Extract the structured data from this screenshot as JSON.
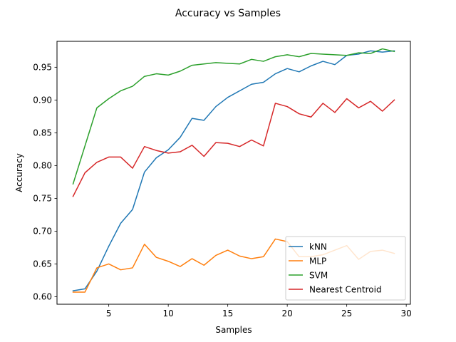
{
  "chart_data": {
    "type": "line",
    "title": "Accuracy vs Samples",
    "xlabel": "Samples",
    "ylabel": "Accuracy",
    "xlim": [
      0.65,
      30.35
    ],
    "ylim": [
      0.5885,
      0.9895
    ],
    "xticks": [
      5,
      10,
      15,
      20,
      25,
      30
    ],
    "yticks": [
      0.6,
      0.65,
      0.7,
      0.75,
      0.8,
      0.85,
      0.9,
      0.95
    ],
    "grid": false,
    "legend_position": "lower-right",
    "x": [
      2,
      3,
      4,
      5,
      6,
      7,
      8,
      9,
      10,
      11,
      12,
      13,
      14,
      15,
      16,
      17,
      18,
      19,
      20,
      21,
      22,
      23,
      24,
      25,
      26,
      27,
      28,
      29
    ],
    "series": [
      {
        "name": "kNN",
        "color": "#1f77b4",
        "values": [
          0.609,
          0.612,
          0.639,
          0.677,
          0.712,
          0.733,
          0.79,
          0.812,
          0.824,
          0.843,
          0.872,
          0.869,
          0.89,
          0.904,
          0.914,
          0.924,
          0.927,
          0.94,
          0.948,
          0.943,
          0.952,
          0.959,
          0.954,
          0.968,
          0.97,
          0.975,
          0.973,
          0.975
        ]
      },
      {
        "name": "MLP",
        "color": "#ff7f0e",
        "values": [
          0.607,
          0.607,
          0.644,
          0.65,
          0.641,
          0.644,
          0.68,
          0.66,
          0.654,
          0.646,
          0.658,
          0.648,
          0.663,
          0.671,
          0.662,
          0.658,
          0.661,
          0.688,
          0.684,
          0.661,
          0.661,
          0.664,
          0.671,
          0.678,
          0.657,
          0.669,
          0.671,
          0.666
        ]
      },
      {
        "name": "SVM",
        "color": "#2ca02c",
        "values": [
          0.772,
          0.83,
          0.888,
          0.902,
          0.914,
          0.921,
          0.936,
          0.94,
          0.938,
          0.944,
          0.953,
          0.955,
          0.957,
          0.956,
          0.955,
          0.962,
          0.959,
          0.966,
          0.969,
          0.966,
          0.971,
          0.97,
          0.969,
          0.968,
          0.972,
          0.971,
          0.978,
          0.974
        ]
      },
      {
        "name": "Nearest Centroid",
        "color": "#d62728",
        "values": [
          0.753,
          0.789,
          0.805,
          0.813,
          0.813,
          0.796,
          0.829,
          0.823,
          0.819,
          0.821,
          0.831,
          0.814,
          0.835,
          0.834,
          0.829,
          0.839,
          0.83,
          0.895,
          0.89,
          0.879,
          0.874,
          0.895,
          0.881,
          0.902,
          0.888,
          0.898,
          0.883,
          0.9
        ]
      }
    ]
  }
}
